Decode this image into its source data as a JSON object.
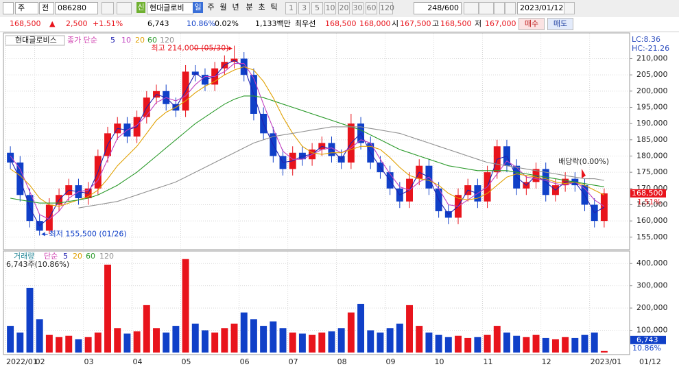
{
  "toolbar": {
    "market": "주",
    "prev": "전",
    "code": "086280",
    "credit": "신",
    "name": "현대글로비",
    "periods": [
      "일",
      "주",
      "월",
      "년",
      "분",
      "초",
      "틱"
    ],
    "intervals": [
      "1",
      "3",
      "5",
      "10",
      "20",
      "30",
      "60",
      "120"
    ],
    "count": "248/600",
    "date": "2023/01/12"
  },
  "quote": {
    "price": "168,500",
    "arrow": "▲",
    "change": "2,500",
    "rate": "+1.51%",
    "volume": "6,743",
    "volume_rate": "10.86%",
    "turnover": "0.02%",
    "amount": "1,133백만",
    "best": "최우선",
    "ask": "168,500",
    "bid": "168,000",
    "open_label": "시",
    "open": "167,500",
    "high_label": "고",
    "high": "168,500",
    "low_label": "저",
    "low": "167,000",
    "buy": "매수",
    "sell": "매도"
  },
  "chart_data": [
    {
      "type": "candlestick",
      "title": "현대글로비스",
      "legend_label": "종가 단순",
      "up_color": "#e8141c",
      "down_color": "#1040c8",
      "open": [
        181000,
        178000,
        168000,
        160000,
        157000,
        165000,
        168000,
        171000,
        167000,
        170000,
        180000,
        187000,
        190000,
        186000,
        192000,
        198000,
        200000,
        196000,
        194000,
        206000,
        205000,
        202000,
        207000,
        209000,
        210000,
        205000,
        193000,
        187000,
        180000,
        176000,
        181000,
        179000,
        182000,
        184000,
        180000,
        178000,
        190000,
        184000,
        178000,
        175000,
        170000,
        166000,
        173000,
        177000,
        170000,
        163000,
        161000,
        168000,
        171000,
        166000,
        175000,
        183000,
        177000,
        170000,
        172000,
        176000,
        168000,
        171000,
        173000,
        171000,
        165000,
        160000
      ],
      "high": [
        183000,
        180000,
        170000,
        162000,
        167000,
        170000,
        173000,
        173000,
        172000,
        182000,
        189000,
        192000,
        192000,
        194000,
        200000,
        202000,
        202000,
        198000,
        208000,
        208000,
        207000,
        209000,
        211000,
        214000,
        212000,
        207000,
        195000,
        189000,
        182000,
        183000,
        183000,
        184000,
        186000,
        186000,
        182000,
        193000,
        192000,
        186000,
        180000,
        177000,
        172000,
        175000,
        179000,
        179000,
        172000,
        165000,
        170000,
        173000,
        173000,
        177000,
        185000,
        185000,
        179000,
        174000,
        178000,
        178000,
        173000,
        175000,
        175000,
        173000,
        167000,
        170000
      ],
      "low": [
        176000,
        166000,
        158000,
        155500,
        156000,
        163000,
        166000,
        165000,
        165000,
        168000,
        178000,
        185000,
        184000,
        184000,
        190000,
        196000,
        194000,
        192000,
        192000,
        203000,
        200000,
        200000,
        205000,
        207000,
        203000,
        191000,
        185000,
        178000,
        174000,
        174000,
        177000,
        177000,
        180000,
        178000,
        176000,
        176000,
        182000,
        176000,
        173000,
        168000,
        164000,
        164000,
        171000,
        168000,
        161000,
        159000,
        159000,
        166000,
        164000,
        164000,
        173000,
        175000,
        168000,
        168000,
        170000,
        166000,
        166000,
        169000,
        169000,
        163000,
        158000,
        158000
      ],
      "close": [
        178000,
        168000,
        160000,
        157000,
        165000,
        168000,
        171000,
        167000,
        170000,
        180000,
        187000,
        190000,
        186000,
        192000,
        198000,
        200000,
        196000,
        194000,
        206000,
        205000,
        202000,
        207000,
        209000,
        210000,
        205000,
        193000,
        187000,
        180000,
        176000,
        181000,
        179000,
        182000,
        184000,
        180000,
        178000,
        190000,
        184000,
        178000,
        175000,
        170000,
        166000,
        173000,
        177000,
        170000,
        163000,
        161000,
        168000,
        171000,
        166000,
        175000,
        183000,
        177000,
        170000,
        172000,
        176000,
        168000,
        171000,
        173000,
        171000,
        165000,
        160000,
        168500
      ],
      "series": [
        {
          "name": "5",
          "color": "#2020b0",
          "values": [
            179000,
            173000,
            164000,
            158500,
            161000,
            166500,
            169500,
            169000,
            168500,
            175000,
            183500,
            188500,
            188000,
            189000,
            195000,
            199000,
            198000,
            195000,
            200000,
            205500,
            203500,
            204500,
            208000,
            209500,
            207500,
            199000,
            190000,
            183500,
            178000,
            178500,
            180000,
            180500,
            183000,
            182000,
            179000,
            184000,
            187000,
            181000,
            176500,
            172500,
            168000,
            169500,
            175000,
            173500,
            166500,
            162000,
            164500,
            169500,
            168500,
            170500,
            179000,
            180000,
            173500,
            171000,
            174000,
            172000,
            169500,
            172000,
            172000,
            168000,
            162500,
            164250
          ]
        },
        {
          "name": "10",
          "color": "#c040c0",
          "values": [
            180000,
            176000,
            169000,
            162000,
            160500,
            163000,
            167000,
            169000,
            169500,
            172500,
            179000,
            185500,
            188000,
            189500,
            192500,
            196500,
            198000,
            197000,
            198500,
            202000,
            204500,
            204500,
            206000,
            208500,
            208500,
            204000,
            196000,
            188500,
            181500,
            179000,
            179000,
            180500,
            182000,
            182500,
            181000,
            182500,
            185000,
            184000,
            179000,
            174500,
            170500,
            169500,
            172000,
            173500,
            170000,
            165000,
            164500,
            166500,
            168500,
            170500,
            174500,
            178500,
            176500,
            173500,
            173000,
            172500,
            171500,
            171000,
            172000,
            170000,
            166500,
            164500
          ]
        },
        {
          "name": "20",
          "color": "#e0a000",
          "values": [
            176000,
            174000,
            171000,
            167000,
            165000,
            164500,
            165500,
            166500,
            167500,
            169500,
            173000,
            177000,
            180000,
            183000,
            187000,
            191000,
            193500,
            195000,
            197000,
            199500,
            201500,
            203000,
            205000,
            206500,
            207500,
            206500,
            203000,
            198000,
            192000,
            187000,
            183000,
            181000,
            180500,
            181000,
            181000,
            182000,
            183000,
            183000,
            182000,
            179500,
            176500,
            174000,
            173000,
            172500,
            171000,
            168500,
            167000,
            166500,
            167000,
            168500,
            171000,
            173500,
            174500,
            174000,
            173500,
            173000,
            172000,
            171500,
            172000,
            171000,
            169500,
            168000
          ]
        },
        {
          "name": "60",
          "color": "#2a9a2a",
          "values": [
            167000,
            166500,
            166000,
            165500,
            165500,
            165500,
            166000,
            166500,
            167000,
            168000,
            169500,
            171000,
            173000,
            175000,
            177500,
            180000,
            182500,
            185000,
            187500,
            190000,
            192000,
            194000,
            196000,
            197500,
            198500,
            198500,
            198000,
            197000,
            196000,
            195000,
            194000,
            193000,
            192000,
            191000,
            190000,
            189000,
            188000,
            186500,
            185000,
            183500,
            182000,
            181000,
            180000,
            179000,
            178000,
            177000,
            176500,
            176000,
            175500,
            175500,
            175500,
            175500,
            175000,
            174500,
            174000,
            173500,
            173000,
            172500,
            172000,
            171500,
            171000,
            170500
          ]
        },
        {
          "name": "120",
          "color": "#909090",
          "values": [
            null,
            null,
            null,
            null,
            null,
            null,
            null,
            164000,
            164500,
            165000,
            165500,
            166000,
            167000,
            168000,
            169000,
            170000,
            171000,
            172000,
            173500,
            175000,
            176500,
            178000,
            179500,
            181000,
            182500,
            184000,
            185000,
            186000,
            186500,
            187000,
            187500,
            188000,
            188500,
            189000,
            189000,
            189000,
            189000,
            188500,
            188000,
            187500,
            187000,
            186000,
            185000,
            184000,
            183000,
            182000,
            181000,
            180000,
            179000,
            178000,
            177500,
            177000,
            176500,
            176000,
            175500,
            175000,
            174500,
            174000,
            173500,
            173000,
            173000,
            172500
          ]
        }
      ],
      "ylim": [
        152000,
        217500
      ],
      "yticks": [
        {
          "value": 155000,
          "label": "155,000"
        },
        {
          "value": 160000,
          "label": "160,000"
        },
        {
          "value": 165000,
          "label": "165,000"
        },
        {
          "value": 170000,
          "label": "170,000"
        },
        {
          "value": 175000,
          "label": "175,000"
        },
        {
          "value": 180000,
          "label": "180,000"
        },
        {
          "value": 185000,
          "label": "185,000"
        },
        {
          "value": 190000,
          "label": "190,000"
        },
        {
          "value": 195000,
          "label": "195,000"
        },
        {
          "value": 200000,
          "label": "200,000"
        },
        {
          "value": 205000,
          "label": "205,000"
        },
        {
          "value": 210000,
          "label": "210,000"
        }
      ],
      "grid": true,
      "high_annotation": "최고 214,000 (05/30)",
      "low_annotation": "최저 155,500 (01/26)",
      "dividend_annotation": "배당락(0.00%)",
      "lc": "LC:8.36",
      "hc": "HC:-21.26",
      "last_label": "168,500",
      "change_label": "1.51%"
    },
    {
      "type": "bar",
      "title": "거래량",
      "ma_label": "단순",
      "ma_periods": [
        "5",
        "20",
        "60",
        "120"
      ],
      "annotation": "6,743주(10.86%)",
      "categories": [
        "2022/01",
        null,
        null,
        "02",
        null,
        null,
        null,
        null,
        "03",
        null,
        null,
        null,
        null,
        "04",
        null,
        null,
        null,
        null,
        "05",
        null,
        null,
        null,
        null,
        null,
        "06",
        null,
        null,
        null,
        null,
        "07",
        null,
        null,
        null,
        null,
        "08",
        null,
        null,
        null,
        null,
        "09",
        null,
        null,
        null,
        null,
        "10",
        null,
        null,
        null,
        null,
        "11",
        null,
        null,
        null,
        null,
        null,
        "12",
        null,
        null,
        null,
        null,
        "2023/01",
        null
      ],
      "values": [
        120000,
        90000,
        290000,
        150000,
        80000,
        70000,
        75000,
        60000,
        70000,
        90000,
        395000,
        110000,
        85000,
        95000,
        213000,
        110000,
        90000,
        120000,
        420000,
        130000,
        100000,
        90000,
        110000,
        130000,
        180000,
        150000,
        120000,
        140000,
        110000,
        90000,
        85000,
        80000,
        90000,
        95000,
        110000,
        180000,
        219000,
        100000,
        90000,
        110000,
        130000,
        213000,
        120000,
        90000,
        80000,
        70000,
        75000,
        65000,
        70000,
        80000,
        120000,
        90000,
        75000,
        70000,
        80000,
        65000,
        60000,
        70000,
        65000,
        80000,
        90000,
        6743
      ],
      "ylim": [
        0,
        450000
      ],
      "yticks": [
        {
          "value": 100000,
          "label": "100,000"
        },
        {
          "value": 200000,
          "label": "200,000"
        },
        {
          "value": 300000,
          "label": "300,000"
        },
        {
          "value": 400000,
          "label": "400,000"
        }
      ],
      "grid": true,
      "last_label": "6,743",
      "rate_label": "10.86%",
      "axis_date": "01/12"
    }
  ]
}
